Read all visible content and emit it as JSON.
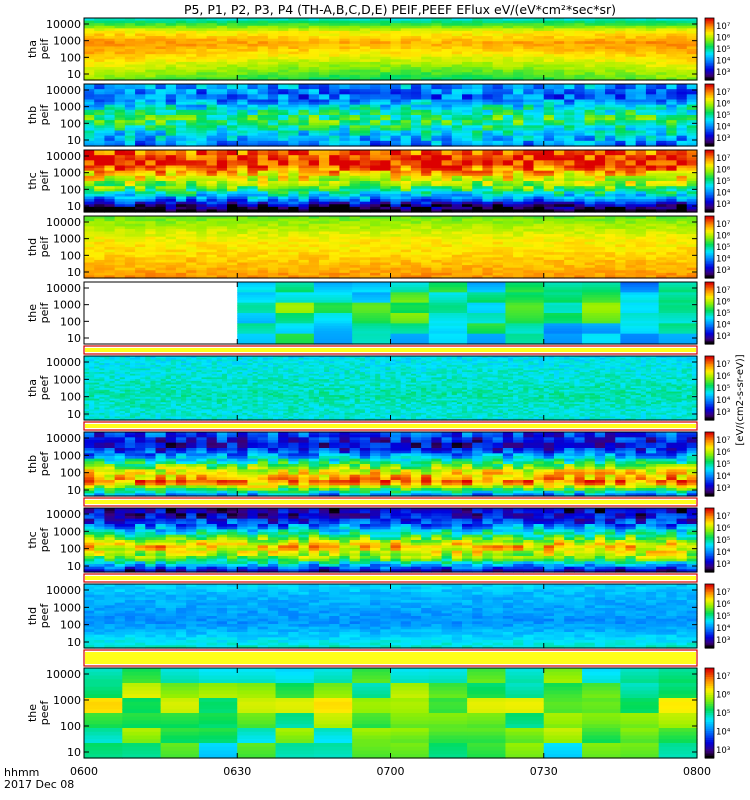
{
  "chart_data": {
    "type": "heatmap",
    "title": "P5, P1, P2, P3, P4 (TH-A,B,C,D,E) PEIF,PEEF EFlux eV/(eV*cm²*sec*sr)",
    "colorbar": {
      "scale": "log",
      "tick_labels": [
        "10⁷",
        "10⁶",
        "10⁵",
        "10⁴",
        "10³"
      ],
      "unit_label": "[eV/(cm2-s-sr-eV)]"
    },
    "x_axis": {
      "label_line1": "hhmm",
      "label_line2": "2017 Dec 08",
      "ticks": [
        "0600",
        "0630",
        "0700",
        "0730",
        "0800"
      ]
    },
    "y_axis": {
      "scale": "log",
      "tick_labels": [
        "10000",
        "1000",
        "100",
        "10"
      ]
    },
    "panels": [
      {
        "probe": "tha",
        "product": "peif",
        "style": "hot",
        "flux_by_energy": [
          4.8,
          6.3,
          6.9,
          6.6,
          6.2,
          5.8
        ],
        "blank_until": 0,
        "has_gap_after": false
      },
      {
        "probe": "thb",
        "product": "peif",
        "style": "band",
        "flux_by_energy": [
          4.2,
          3.8,
          4.8,
          5.4,
          4.6,
          4.0
        ],
        "blank_until": 0,
        "has_gap_after": false
      },
      {
        "probe": "thc",
        "product": "peif",
        "style": "band",
        "flux_by_energy": [
          7.0,
          7.4,
          6.4,
          5.6,
          4.1,
          2.2
        ],
        "blank_until": 0,
        "has_gap_after": false
      },
      {
        "probe": "thd",
        "product": "peif",
        "style": "smooth",
        "flux_by_energy": [
          5.6,
          6.0,
          6.3,
          6.4,
          6.6,
          6.8
        ],
        "blank_until": 0,
        "has_gap_after": false
      },
      {
        "probe": "the",
        "product": "peif",
        "style": "blocky",
        "flux_by_energy": [
          4.5,
          4.9,
          5.2,
          5.0,
          4.7,
          4.6
        ],
        "blank_until": 4,
        "has_gap_after": true
      },
      {
        "probe": "tha",
        "product": "peef",
        "style": "noisy",
        "flux_by_energy": [
          4.6,
          4.7,
          4.8,
          4.9,
          4.8,
          4.7
        ],
        "blank_until": 0,
        "has_gap_after": true
      },
      {
        "probe": "thb",
        "product": "peef",
        "style": "band",
        "flux_by_energy": [
          3.7,
          3.1,
          4.4,
          6.1,
          7.0,
          4.2
        ],
        "blank_until": 0,
        "has_gap_after": true
      },
      {
        "probe": "thc",
        "product": "peef",
        "style": "band",
        "flux_by_energy": [
          3.0,
          3.5,
          4.9,
          6.6,
          5.6,
          3.2
        ],
        "blank_until": 0,
        "has_gap_after": true
      },
      {
        "probe": "thd",
        "product": "peef",
        "style": "smooth",
        "flux_by_energy": [
          4.5,
          4.3,
          4.2,
          4.1,
          4.4,
          4.8
        ],
        "blank_until": 0,
        "has_gap_after": true
      },
      {
        "probe": "the",
        "product": "peef",
        "style": "blocky",
        "flux_by_energy": [
          5.2,
          5.5,
          5.8,
          5.6,
          5.2,
          5.0
        ],
        "blank_until": 0,
        "has_gap_after": false
      }
    ]
  }
}
